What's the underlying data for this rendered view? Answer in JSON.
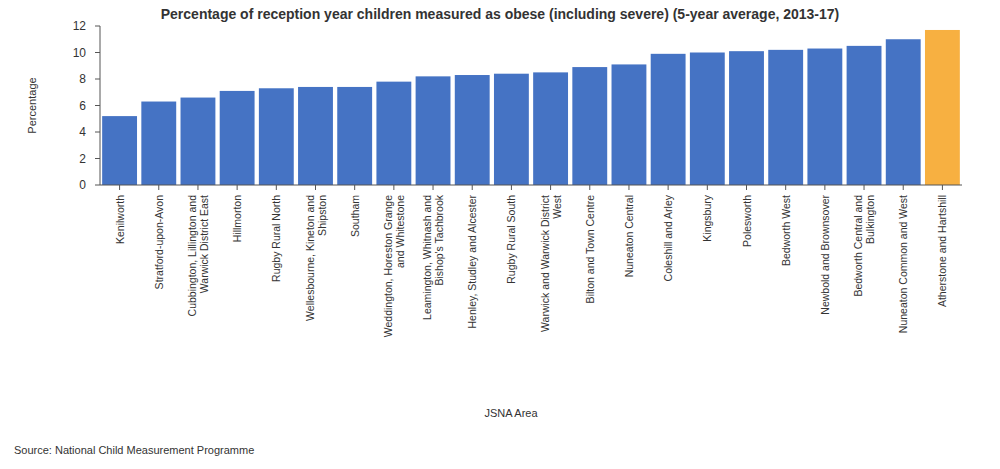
{
  "chart_data": {
    "type": "bar",
    "title": "Percentage of reception year children measured as obese (including severe) (5-year average, 2013-17)",
    "x_label": "JSNA Area",
    "y_label": "Percentage",
    "source": "Source: National Child Measurement Programme",
    "categories": [
      "Kenilworth",
      "Stratford-upon-Avon",
      "Cubbington, Lillington and Warwick District East",
      "Hillmorton",
      "Rugby Rural North",
      "Wellesbourne, Kineton and Shipston",
      "Southam",
      "Weddington, Horeston Grange and Whitestone",
      "Leamington, Whitnash and Bishop's Tachbrook",
      "Henley, Studley and Alcester",
      "Rugby Rural South",
      "Warwick and Warwick District West",
      "Bilton and Town Centre",
      "Nuneaton Central",
      "Coleshill and Arley",
      "Kingsbury",
      "Polesworth",
      "Bedworth West",
      "Newbold and Brownsover",
      "Bedworth Central and Bulkington",
      "Nuneaton Common and West",
      "Atherstone and Hartshill"
    ],
    "values": [
      5.2,
      6.3,
      6.6,
      7.1,
      7.3,
      7.4,
      7.4,
      7.8,
      8.2,
      8.3,
      8.4,
      8.5,
      8.9,
      9.1,
      9.9,
      10.0,
      10.1,
      10.2,
      10.3,
      10.5,
      11.0,
      11.7
    ],
    "colors": [
      "#4573c4",
      "#4573c4",
      "#4573c4",
      "#4573c4",
      "#4573c4",
      "#4573c4",
      "#4573c4",
      "#4573c4",
      "#4573c4",
      "#4573c4",
      "#4573c4",
      "#4573c4",
      "#4573c4",
      "#4573c4",
      "#4573c4",
      "#4573c4",
      "#4573c4",
      "#4573c4",
      "#4573c4",
      "#4573c4",
      "#4573c4",
      "#f7b041"
    ],
    "ylim": [
      0,
      12
    ],
    "yticks": [
      0,
      2,
      4,
      6,
      8,
      10,
      12
    ],
    "grid": false
  }
}
